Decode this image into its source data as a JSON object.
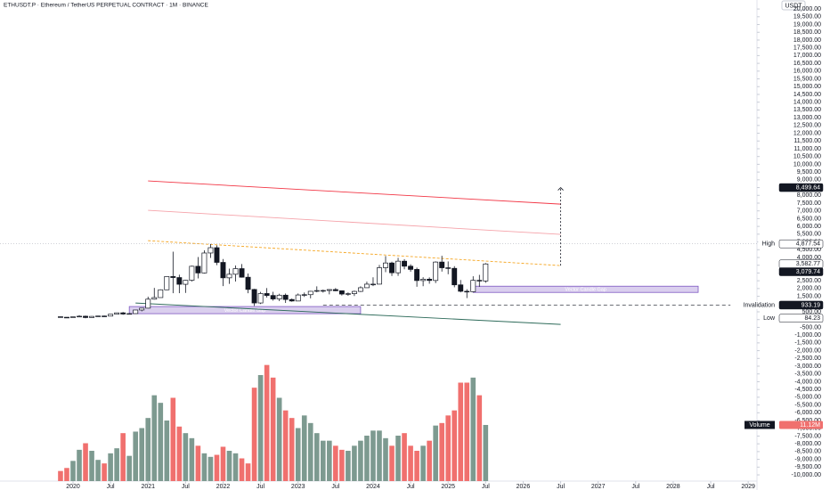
{
  "chart_data": {
    "type": "candlestick",
    "title": "ETHUSDT.P · Ethereum / TetherUS PERPETUAL CONTRACT · 1M · BINANCE",
    "currency": "USDT",
    "x": [
      "2019-11",
      "2019-12",
      "2020-01",
      "2020-02",
      "2020-03",
      "2020-04",
      "2020-05",
      "2020-06",
      "2020-07",
      "2020-08",
      "2020-09",
      "2020-10",
      "2020-11",
      "2020-12",
      "2021-01",
      "2021-02",
      "2021-03",
      "2021-04",
      "2021-05",
      "2021-06",
      "2021-07",
      "2021-08",
      "2021-09",
      "2021-10",
      "2021-11",
      "2021-12",
      "2022-01",
      "2022-02",
      "2022-03",
      "2022-04",
      "2022-05",
      "2022-06",
      "2022-07",
      "2022-08",
      "2022-09",
      "2022-10",
      "2022-11",
      "2022-12",
      "2023-01",
      "2023-02",
      "2023-03",
      "2023-04",
      "2023-05",
      "2023-06",
      "2023-07",
      "2023-08",
      "2023-09",
      "2023-10",
      "2023-11",
      "2023-12",
      "2024-01",
      "2024-02",
      "2024-03",
      "2024-04",
      "2024-05",
      "2024-06",
      "2024-07",
      "2024-08",
      "2024-09",
      "2024-10",
      "2024-11",
      "2024-12",
      "2025-01",
      "2025-02",
      "2025-03",
      "2025-04",
      "2025-05",
      "2025-06",
      "2025-07"
    ],
    "open": [
      183,
      152,
      129,
      179,
      217,
      133,
      206,
      230,
      225,
      345,
      434,
      359,
      386,
      616,
      737,
      1314,
      1417,
      1918,
      2773,
      2707,
      2274,
      2530,
      3433,
      3001,
      4288,
      4631,
      3683,
      2688,
      2919,
      3282,
      2728,
      1942,
      1070,
      1679,
      1553,
      1328,
      1572,
      1295,
      1196,
      1585,
      1605,
      1822,
      1869,
      1874,
      1934,
      1856,
      1645,
      1671,
      1815,
      2052,
      2282,
      2283,
      3340,
      3645,
      3015,
      3761,
      3438,
      3231,
      2513,
      2603,
      2518,
      3705,
      3337,
      3300,
      2237,
      1822,
      1793,
      2528,
      2486
    ],
    "high": [
      193,
      155,
      185,
      288,
      253,
      227,
      247,
      255,
      349,
      446,
      488,
      420,
      622,
      754,
      1476,
      2041,
      1948,
      2797,
      4372,
      2891,
      2551,
      3473,
      4028,
      4460,
      4868,
      4778,
      3900,
      3285,
      3480,
      3580,
      2965,
      1975,
      1785,
      2030,
      1790,
      1665,
      1680,
      1353,
      1680,
      1743,
      1850,
      2141,
      1930,
      1950,
      2030,
      1870,
      1750,
      1865,
      2140,
      2446,
      2720,
      3520,
      4094,
      3730,
      3977,
      3890,
      3560,
      3350,
      2730,
      2720,
      3750,
      4110,
      3745,
      3440,
      2550,
      1955,
      2790,
      2880,
      3640
    ],
    "low": [
      140,
      117,
      127,
      178,
      86,
      130,
      176,
      215,
      224,
      335,
      308,
      335,
      373,
      531,
      715,
      1291,
      1437,
      1900,
      1700,
      1701,
      1718,
      2450,
      2651,
      2970,
      3970,
      3503,
      2159,
      2300,
      2451,
      2700,
      1700,
      880,
      1000,
      1420,
      1220,
      1190,
      1073,
      1150,
      1190,
      1460,
      1368,
      1760,
      1740,
      1625,
      1830,
      1550,
      1530,
      1520,
      1775,
      2050,
      2160,
      2270,
      3055,
      2810,
      2817,
      3240,
      3080,
      2115,
      2150,
      2310,
      2350,
      3090,
      2920,
      2080,
      1755,
      1385,
      1750,
      2110,
      2370
    ],
    "close": [
      152,
      129,
      179,
      217,
      133,
      206,
      230,
      225,
      345,
      434,
      359,
      386,
      616,
      737,
      1314,
      1417,
      1918,
      2773,
      2707,
      2274,
      2530,
      3433,
      3001,
      4288,
      4631,
      3683,
      2688,
      2919,
      3282,
      2728,
      1942,
      1070,
      1679,
      1553,
      1328,
      1572,
      1295,
      1196,
      1585,
      1605,
      1822,
      1869,
      1874,
      1934,
      1856,
      1645,
      1671,
      1815,
      2052,
      2282,
      2283,
      3340,
      3645,
      3015,
      3761,
      3438,
      3231,
      2513,
      2603,
      2518,
      3705,
      3337,
      3300,
      2237,
      1822,
      1793,
      2528,
      2486,
      3582.77
    ],
    "up_color": "#ffffff",
    "down_color": "#131722",
    "ylim": [
      -10400,
      20350
    ],
    "yticks": [
      {
        "value": 20000,
        "label": "20,000.00"
      },
      {
        "value": 19500,
        "label": "19,500.00"
      },
      {
        "value": 19000,
        "label": "19,000.00"
      },
      {
        "value": 18500,
        "label": "18,500.00"
      },
      {
        "value": 18000,
        "label": "18,000.00"
      },
      {
        "value": 17500,
        "label": "17,500.00"
      },
      {
        "value": 17000,
        "label": "17,000.00"
      },
      {
        "value": 16500,
        "label": "16,500.00"
      },
      {
        "value": 16000,
        "label": "16,000.00"
      },
      {
        "value": 15500,
        "label": "15,500.00"
      },
      {
        "value": 15000,
        "label": "15,000.00"
      },
      {
        "value": 14500,
        "label": "14,500.00"
      },
      {
        "value": 14000,
        "label": "14,000.00"
      },
      {
        "value": 13500,
        "label": "13,500.00"
      },
      {
        "value": 13000,
        "label": "13,000.00"
      },
      {
        "value": 12500,
        "label": "12,500.00"
      },
      {
        "value": 12000,
        "label": "12,000.00"
      },
      {
        "value": 11500,
        "label": "11,500.00"
      },
      {
        "value": 11000,
        "label": "11,000.00"
      },
      {
        "value": 10500,
        "label": "10,500.00"
      },
      {
        "value": 10000,
        "label": "10,000.00"
      },
      {
        "value": 9500,
        "label": "9,500.00"
      },
      {
        "value": 9000,
        "label": "9,000.00"
      },
      {
        "value": 8500,
        "label": "8,500.00"
      },
      {
        "value": 8000,
        "label": "8,000.00"
      },
      {
        "value": 7500,
        "label": "7,500.00"
      },
      {
        "value": 7000,
        "label": "7,000.00"
      },
      {
        "value": 6500,
        "label": "6,500.00"
      },
      {
        "value": 6000,
        "label": "6,000.00"
      },
      {
        "value": 5500,
        "label": "5,500.00"
      },
      {
        "value": 5000,
        "label": "5,000.00"
      },
      {
        "value": 4500,
        "label": "4,500.00"
      },
      {
        "value": 4000,
        "label": "4,000.00"
      },
      {
        "value": 3500,
        "label": "3,500.00"
      },
      {
        "value": 3000,
        "label": "3,000.00"
      },
      {
        "value": 2500,
        "label": "2,500.00"
      },
      {
        "value": 2000,
        "label": "2,000.00"
      },
      {
        "value": 1500,
        "label": "1,500.00"
      },
      {
        "value": 1000,
        "label": "1,000.00"
      },
      {
        "value": 500,
        "label": "500.00"
      },
      {
        "value": 0,
        "label": "0.00"
      },
      {
        "value": -500,
        "label": "-500.00"
      },
      {
        "value": -1000,
        "label": "-1,000.00"
      },
      {
        "value": -1500,
        "label": "-1,500.00"
      },
      {
        "value": -2000,
        "label": "-2,000.00"
      },
      {
        "value": -2500,
        "label": "-2,500.00"
      },
      {
        "value": -3000,
        "label": "-3,000.00"
      },
      {
        "value": -3500,
        "label": "-3,500.00"
      },
      {
        "value": -4000,
        "label": "-4,000.00"
      },
      {
        "value": -4500,
        "label": "-4,500.00"
      },
      {
        "value": -5000,
        "label": "-5,000.00"
      },
      {
        "value": -5500,
        "label": "-5,500.00"
      },
      {
        "value": -6000,
        "label": "-6,000.00"
      },
      {
        "value": -6500,
        "label": "-6,500.00"
      },
      {
        "value": -7000,
        "label": "-7,000.00"
      },
      {
        "value": -7500,
        "label": "-7,500.00"
      },
      {
        "value": -8000,
        "label": "-8,000.00"
      },
      {
        "value": -8500,
        "label": "-8,500.00"
      },
      {
        "value": -9000,
        "label": "-9,000.00"
      },
      {
        "value": -9500,
        "label": "-9,500.00"
      },
      {
        "value": -10000,
        "label": "-10,000.00"
      }
    ],
    "xticks": [
      {
        "value": "2020-01",
        "label": "2020"
      },
      {
        "value": "2020-07",
        "label": "Jul"
      },
      {
        "value": "2021-01",
        "label": "2021"
      },
      {
        "value": "2021-07",
        "label": "Jul"
      },
      {
        "value": "2022-01",
        "label": "2022"
      },
      {
        "value": "2022-07",
        "label": "Jul"
      },
      {
        "value": "2023-01",
        "label": "2023"
      },
      {
        "value": "2023-07",
        "label": "Jul"
      },
      {
        "value": "2024-01",
        "label": "2024"
      },
      {
        "value": "2024-07",
        "label": "Jul"
      },
      {
        "value": "2025-01",
        "label": "2025"
      },
      {
        "value": "2025-07",
        "label": "Jul"
      },
      {
        "value": "2026-01",
        "label": "2026"
      },
      {
        "value": "2026-07",
        "label": "Jul"
      },
      {
        "value": "2027-01",
        "label": "2027"
      },
      {
        "value": "2027-07",
        "label": "Jul"
      },
      {
        "value": "2028-01",
        "label": "2028"
      },
      {
        "value": "2028-07",
        "label": "Jul"
      },
      {
        "value": "2029-01",
        "label": "2029"
      }
    ],
    "volume": {
      "name": "Volume",
      "values": [
        2.0,
        2.6,
        4.0,
        6.2,
        7.5,
        6.0,
        4.2,
        3.5,
        5.5,
        6.5,
        9.5,
        5.0,
        9.8,
        10.5,
        12.5,
        17.0,
        15.5,
        12.0,
        16.5,
        10.8,
        9.5,
        8.5,
        7.0,
        5.5,
        4.8,
        5.2,
        6.8,
        6.0,
        5.5,
        4.5,
        3.5,
        18.5,
        21.0,
        23.0,
        20.5,
        16.5,
        14.0,
        12.5,
        10.5,
        13.0,
        11.5,
        9.5,
        8.0,
        8.0,
        7.0,
        6.2,
        6.0,
        7.0,
        8.0,
        9.0,
        10.0,
        10.0,
        8.5,
        7.0,
        9.0,
        9.5,
        7.0,
        6.0,
        7.0,
        8.0,
        11.0,
        11.5,
        13.0,
        14.0,
        19.5,
        19.5,
        20.5,
        17.0,
        11.12
      ],
      "last_label": "11.12M",
      "ylim": [
        0,
        24
      ],
      "up_color": "#7d9a90",
      "down_color": "#f0706e"
    },
    "trendlines": [
      {
        "color": "#f23645",
        "x": [
          "2021-01",
          "2026-07"
        ],
        "y": [
          8927,
          7435
        ]
      },
      {
        "color": "#f5a3aa",
        "x": [
          "2021-01",
          "2026-07"
        ],
        "y": [
          7034,
          5485
        ]
      },
      {
        "color": "#f5a623",
        "dashed": true,
        "x": [
          "2021-01",
          "2026-07"
        ],
        "y": [
          5083,
          3477
        ]
      },
      {
        "color": "#2e6b5a",
        "x": [
          "2020-11",
          "2026-07"
        ],
        "y": [
          1067,
          -310
        ]
      }
    ],
    "projection": {
      "x": "2026-07",
      "y": [
        3477,
        8499.64
      ]
    },
    "zones": [
      {
        "label": "Vector Candle Gap",
        "x": [
          "2025-05",
          "2028-05"
        ],
        "y": [
          1750,
          2150
        ]
      },
      {
        "label": "Vector Candle Gap",
        "x": [
          "2020-10",
          "2023-11"
        ],
        "y": [
          380,
          840
        ]
      }
    ],
    "price_tags": [
      {
        "value": 8499.64,
        "label": "8,499.64",
        "bg": "#131722",
        "fg": "#ffffff"
      },
      {
        "name": "High",
        "value": 4877.54,
        "label": "4,877.54",
        "bg": "#ffffff",
        "fg": "#131722",
        "line": "dotted"
      },
      {
        "value": 3582.77,
        "label": "3,582.77",
        "bg": "#ffffff",
        "fg": "#131722"
      },
      {
        "value": 3079.74,
        "label": "3,079.74",
        "bg": "#131722",
        "fg": "#ffffff"
      },
      {
        "name": "Invalidation",
        "value": 933.19,
        "label": "933.19",
        "bg": "#131722",
        "fg": "#ffffff",
        "line": "dashed",
        "from": "2023-05"
      },
      {
        "name": "Low",
        "value": 84.23,
        "label": "84.23",
        "bg": "#ffffff",
        "fg": "#131722"
      }
    ]
  }
}
